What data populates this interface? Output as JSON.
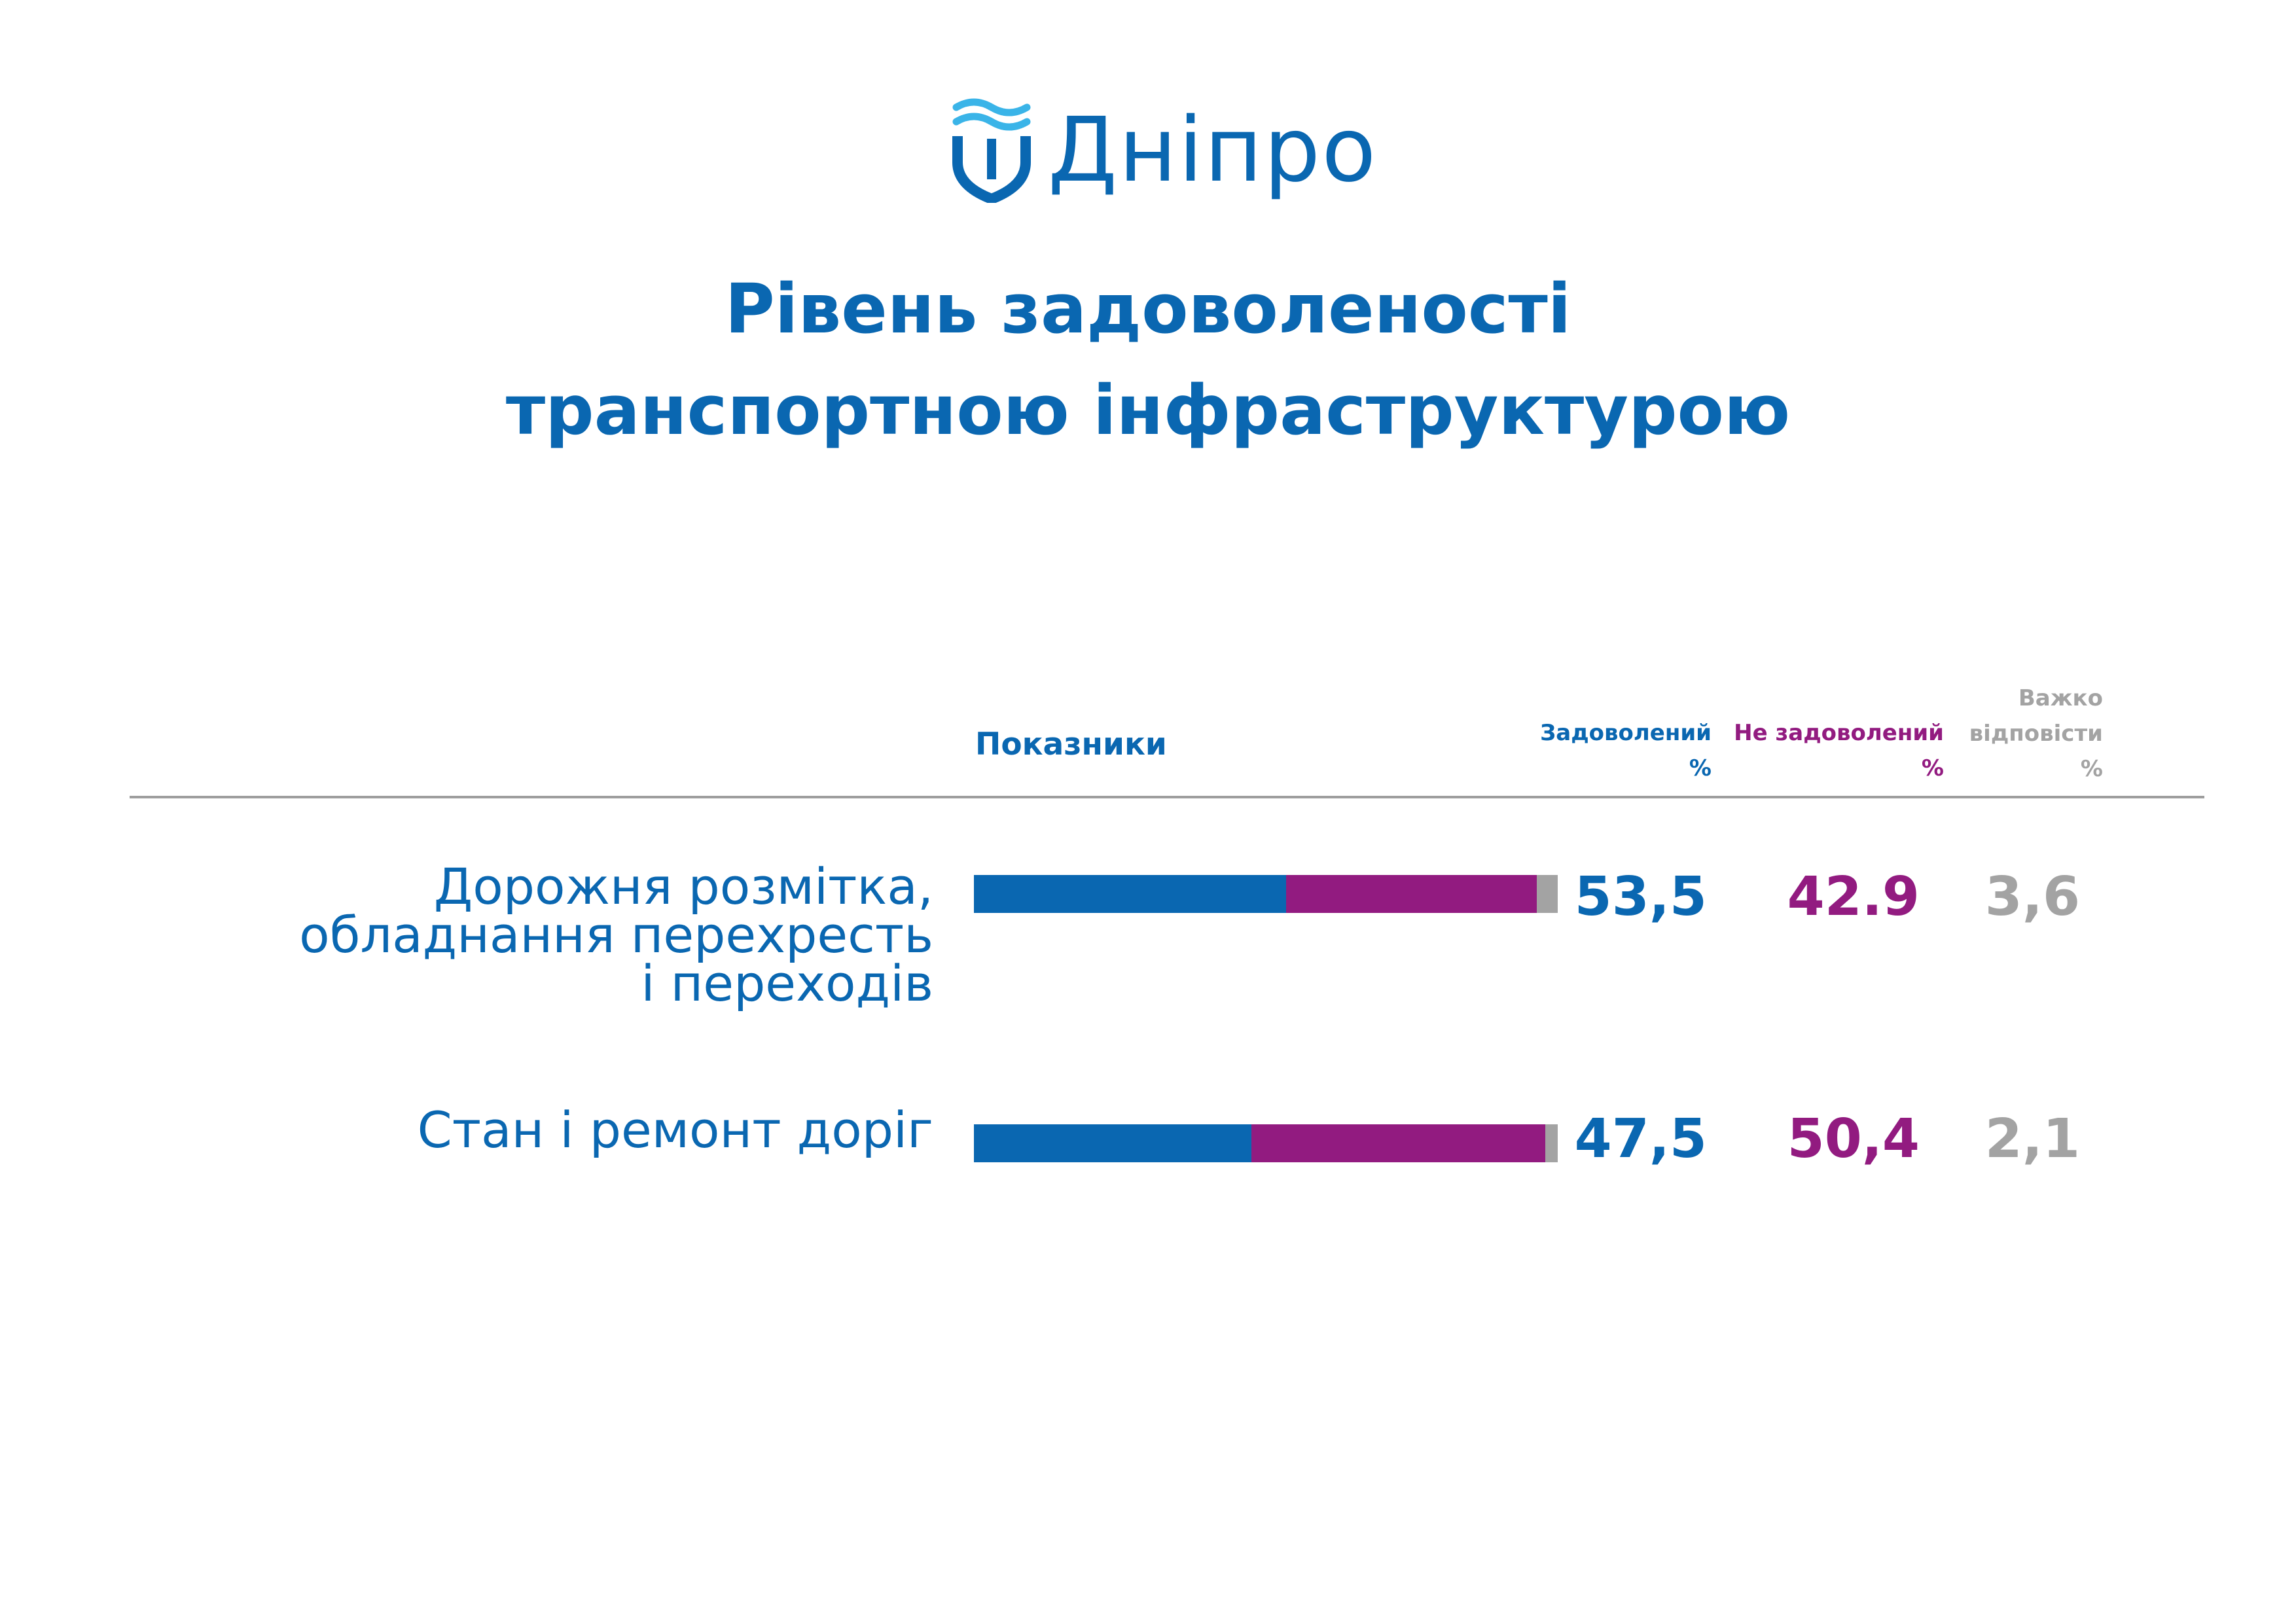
{
  "logo": {
    "text": "Дніпро",
    "icon": "dnipro-shield-wave-icon",
    "color_primary": "#0a67b1",
    "color_wave": "#3ab4e8"
  },
  "title": {
    "line1": "Рівень задоволеності",
    "line2": "транспортною інфраструктурою"
  },
  "header": {
    "indicators": "Показники",
    "satisfied": [
      "Задоволений",
      "%"
    ],
    "not_satisfied": [
      "Не задоволений",
      "%"
    ],
    "hard_to_answer": [
      "Важко",
      "відповісти",
      "%"
    ]
  },
  "colors": {
    "satisfied": "#0a67b1",
    "not_satisfied": "#921b80",
    "hard_to_answer": "#a3a3a3",
    "rule": "#9e9e9e"
  },
  "chart_data": {
    "type": "bar",
    "orientation": "horizontal",
    "stacked": true,
    "categories": [
      "Дорожня розмітка, обладнання перехресть і переходів",
      "Стан і ремонт доріг"
    ],
    "category_lines": [
      [
        "Дорожня розмітка,",
        "обладнання перехресть",
        "і переходів"
      ],
      [
        "Стан і ремонт доріг"
      ]
    ],
    "series": [
      {
        "name": "Задоволений",
        "values": [
          53.5,
          47.5
        ],
        "labels": [
          "53,5",
          "47,5"
        ]
      },
      {
        "name": "Не задоволений",
        "values": [
          42.9,
          50.4
        ],
        "labels": [
          "42.9",
          "50,4"
        ]
      },
      {
        "name": "Важко відповісти",
        "values": [
          3.6,
          2.1
        ],
        "labels": [
          "3,6",
          "2,1"
        ]
      }
    ],
    "xlim": [
      0,
      100
    ],
    "grid": false,
    "legend": "top (column headers)"
  }
}
